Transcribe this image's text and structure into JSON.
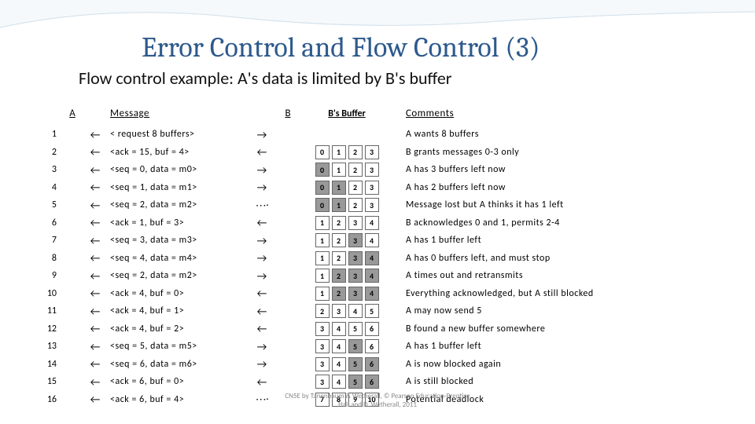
{
  "title": "Error Control and Flow Control (3)",
  "subtitle": "Flow control example: A's data is limited by B's buffer",
  "headers": {
    "A": "A",
    "msg": "Message",
    "B": "B",
    "buf": "B's Buffer",
    "comm": "Comments"
  },
  "colors": {
    "title": "#2E5A8C",
    "filled": "#999999",
    "border": "#666666",
    "text": "#111111"
  },
  "rows": [
    {
      "n": "1",
      "la": "l",
      "msg": "< request 8 buffers>",
      "ra": "r",
      "buf": null,
      "comm": "A wants 8 buffers"
    },
    {
      "n": "2",
      "la": "l",
      "msg": "<ack = 15, buf = 4>",
      "ra": "l",
      "buf": [
        [
          0,
          0
        ],
        [
          1,
          0
        ],
        [
          2,
          0
        ],
        [
          3,
          0
        ]
      ],
      "comm": "B grants messages 0-3 only"
    },
    {
      "n": "3",
      "la": "l",
      "msg": "<seq = 0, data = m0>",
      "ra": "r",
      "buf": [
        [
          0,
          1
        ],
        [
          1,
          0
        ],
        [
          2,
          0
        ],
        [
          3,
          0
        ]
      ],
      "comm": "A has 3 buffers left now"
    },
    {
      "n": "4",
      "la": "l",
      "msg": "<seq = 1, data = m1>",
      "ra": "r",
      "buf": [
        [
          0,
          1
        ],
        [
          1,
          1
        ],
        [
          2,
          0
        ],
        [
          3,
          0
        ]
      ],
      "comm": "A has 2 buffers left now"
    },
    {
      "n": "5",
      "la": "l",
      "msg": "<seq = 2, data = m2>",
      "ra": "x",
      "buf": [
        [
          0,
          1
        ],
        [
          1,
          1
        ],
        [
          2,
          0
        ],
        [
          3,
          0
        ]
      ],
      "comm": "Message lost but A thinks it has 1 left"
    },
    {
      "n": "6",
      "la": "l",
      "msg": "<ack = 1, buf = 3>",
      "ra": "l",
      "buf": [
        [
          1,
          0
        ],
        [
          2,
          0
        ],
        [
          3,
          0
        ],
        [
          4,
          0
        ]
      ],
      "comm": "B acknowledges 0 and 1, permits 2-4"
    },
    {
      "n": "7",
      "la": "l",
      "msg": "<seq = 3, data = m3>",
      "ra": "r",
      "buf": [
        [
          1,
          0
        ],
        [
          2,
          0
        ],
        [
          3,
          1
        ],
        [
          4,
          0
        ]
      ],
      "comm": "A has 1 buffer left"
    },
    {
      "n": "8",
      "la": "l",
      "msg": "<seq = 4, data = m4>",
      "ra": "r",
      "buf": [
        [
          1,
          0
        ],
        [
          2,
          0
        ],
        [
          3,
          1
        ],
        [
          4,
          1
        ]
      ],
      "comm": "A has 0 buffers left, and must stop"
    },
    {
      "n": "9",
      "la": "l",
      "msg": "<seq = 2, data = m2>",
      "ra": "r",
      "buf": [
        [
          1,
          0
        ],
        [
          2,
          1
        ],
        [
          3,
          1
        ],
        [
          4,
          1
        ]
      ],
      "comm": "A times out and retransmits"
    },
    {
      "n": "10",
      "la": "l",
      "msg": "<ack = 4, buf = 0>",
      "ra": "l",
      "buf": [
        [
          1,
          0
        ],
        [
          2,
          1
        ],
        [
          3,
          1
        ],
        [
          4,
          1
        ]
      ],
      "comm": "Everything acknowledged, but A still blocked"
    },
    {
      "n": "11",
      "la": "l",
      "msg": "<ack = 4, buf = 1>",
      "ra": "l",
      "buf": [
        [
          2,
          0
        ],
        [
          3,
          0
        ],
        [
          4,
          0
        ],
        [
          5,
          0
        ]
      ],
      "comm": "A may now send 5"
    },
    {
      "n": "12",
      "la": "l",
      "msg": "<ack = 4, buf = 2>",
      "ra": "l",
      "buf": [
        [
          3,
          0
        ],
        [
          4,
          0
        ],
        [
          5,
          0
        ],
        [
          6,
          0
        ]
      ],
      "comm": "B found a new buffer somewhere"
    },
    {
      "n": "13",
      "la": "l",
      "msg": "<seq = 5, data = m5>",
      "ra": "r",
      "buf": [
        [
          3,
          0
        ],
        [
          4,
          0
        ],
        [
          5,
          1
        ],
        [
          6,
          0
        ]
      ],
      "comm": "A has 1 buffer left"
    },
    {
      "n": "14",
      "la": "l",
      "msg": "<seq = 6, data = m6>",
      "ra": "r",
      "buf": [
        [
          3,
          0
        ],
        [
          4,
          0
        ],
        [
          5,
          1
        ],
        [
          6,
          1
        ]
      ],
      "comm": "A is now blocked again"
    },
    {
      "n": "15",
      "la": "l",
      "msg": "<ack = 6, buf = 0>",
      "ra": "l",
      "buf": [
        [
          3,
          0
        ],
        [
          4,
          0
        ],
        [
          5,
          1
        ],
        [
          6,
          1
        ]
      ],
      "comm": "A is still blocked"
    },
    {
      "n": "16",
      "la": "l",
      "msg": "<ack = 6, buf = 4>",
      "ra": "x",
      "buf": [
        [
          7,
          0
        ],
        [
          8,
          0
        ],
        [
          9,
          0
        ],
        [
          10,
          0
        ]
      ],
      "comm": "Potential deadlock"
    }
  ],
  "footer1": "CN5E by Tanenbaum & Wetherall, © Pearson Education-Prentice",
  "footer2": "Hall and D. Wetherall, 2011"
}
